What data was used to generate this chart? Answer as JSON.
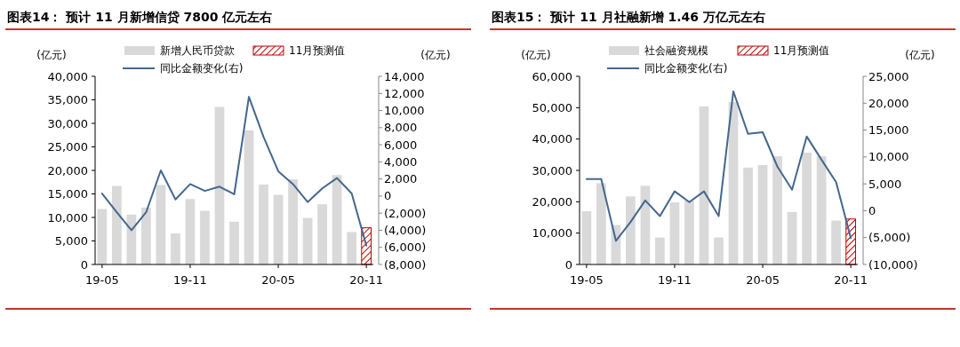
{
  "chart_data": [
    {
      "type": "bar",
      "title": "图表14：  预计 11 月新增信贷 7800 亿元左右",
      "ylabel": "(亿元)",
      "y2label": "(亿元)",
      "legend": "top",
      "categories": [
        "19-05",
        null,
        null,
        null,
        null,
        null,
        "19-11",
        null,
        null,
        null,
        null,
        null,
        "20-05",
        null,
        null,
        null,
        null,
        null,
        "20-11"
      ],
      "series": [
        {
          "name": "新增人民币贷款",
          "color": "#d9d9d9",
          "values": [
            11800,
            16700,
            10600,
            12100,
            16900,
            6600,
            13900,
            11400,
            33500,
            9100,
            28500,
            17000,
            14800,
            18100,
            9900,
            12800,
            19000,
            6900,
            null
          ]
        },
        {
          "name": "11月预测值",
          "color": "#c00000",
          "values": [
            null,
            null,
            null,
            null,
            null,
            null,
            null,
            null,
            null,
            null,
            null,
            null,
            null,
            null,
            null,
            null,
            null,
            null,
            7800
          ]
        },
        {
          "name": "同比金额变化(右)",
          "type": "line",
          "axis": "y2",
          "color": "#44678f",
          "values": [
            300,
            -1900,
            -4000,
            -1900,
            3000,
            -400,
            1400,
            600,
            1100,
            200,
            11600,
            6900,
            2900,
            1400,
            -700,
            900,
            2100,
            300,
            -5800
          ]
        }
      ],
      "ylim": [
        0,
        40000
      ],
      "yticks": [
        0,
        {
          "value": 5000,
          "label": "5,000"
        },
        {
          "value": 10000,
          "label": "10,000"
        },
        {
          "value": 15000,
          "label": "15,000"
        },
        {
          "value": 20000,
          "label": "20,000"
        },
        {
          "value": 25000,
          "label": "25,000"
        },
        {
          "value": 30000,
          "label": "30,000"
        },
        {
          "value": 35000,
          "label": "35,000"
        },
        {
          "value": 40000,
          "label": "40,000"
        }
      ],
      "y2lim": [
        -8000,
        14000
      ],
      "y2ticks": [
        {
          "value": -8000,
          "label": "(8,000)"
        },
        {
          "value": -6000,
          "label": "(6,000)"
        },
        {
          "value": -4000,
          "label": "(4,000)"
        },
        {
          "value": -2000,
          "label": "(2,000)"
        },
        0,
        {
          "value": 2000,
          "label": "2,000"
        },
        {
          "value": 4000,
          "label": "4,000"
        },
        {
          "value": 6000,
          "label": "6,000"
        },
        {
          "value": 8000,
          "label": "8,000"
        },
        {
          "value": 10000,
          "label": "10,000"
        },
        {
          "value": 12000,
          "label": "12,000"
        },
        {
          "value": 14000,
          "label": "14,000"
        }
      ]
    },
    {
      "type": "bar",
      "title": "图表15：  预计 11 月社融新增 1.46 万亿元左右",
      "ylabel": "(亿元)",
      "y2label": "(亿元)",
      "legend": "top",
      "categories": [
        "19-05",
        null,
        null,
        null,
        null,
        null,
        "19-11",
        null,
        null,
        null,
        null,
        null,
        "20-05",
        null,
        null,
        null,
        null,
        null,
        "20-11"
      ],
      "series": [
        {
          "name": "社会融资规模",
          "color": "#d9d9d9",
          "values": [
            17000,
            25900,
            12600,
            21700,
            25100,
            8600,
            19800,
            20400,
            50400,
            8600,
            51800,
            30900,
            31700,
            34500,
            16700,
            35700,
            34500,
            14000,
            null
          ]
        },
        {
          "name": "11月预测值",
          "color": "#c00000",
          "values": [
            null,
            null,
            null,
            null,
            null,
            null,
            null,
            null,
            null,
            null,
            null,
            null,
            null,
            null,
            null,
            null,
            null,
            null,
            14500
          ]
        },
        {
          "name": "同比金额变化(右)",
          "type": "line",
          "axis": "y2",
          "color": "#44678f",
          "values": [
            5900,
            5900,
            -5600,
            -2100,
            1900,
            -1000,
            3600,
            1600,
            3600,
            -1000,
            22200,
            14300,
            14600,
            8200,
            3900,
            13800,
            9500,
            5300,
            -5100
          ]
        }
      ],
      "ylim": [
        0,
        60000
      ],
      "yticks": [
        0,
        {
          "value": 10000,
          "label": "10,000"
        },
        {
          "value": 20000,
          "label": "20,000"
        },
        {
          "value": 30000,
          "label": "30,000"
        },
        {
          "value": 40000,
          "label": "40,000"
        },
        {
          "value": 50000,
          "label": "50,000"
        },
        {
          "value": 60000,
          "label": "60,000"
        }
      ],
      "y2lim": [
        -10000,
        25000
      ],
      "y2ticks": [
        {
          "value": -10000,
          "label": "(10,000)"
        },
        {
          "value": -5000,
          "label": "(5,000)"
        },
        0,
        {
          "value": 5000,
          "label": "5,000"
        },
        {
          "value": 10000,
          "label": "10,000"
        },
        {
          "value": 15000,
          "label": "15,000"
        },
        {
          "value": 20000,
          "label": "20,000"
        },
        {
          "value": 25000,
          "label": "25,000"
        }
      ]
    }
  ]
}
